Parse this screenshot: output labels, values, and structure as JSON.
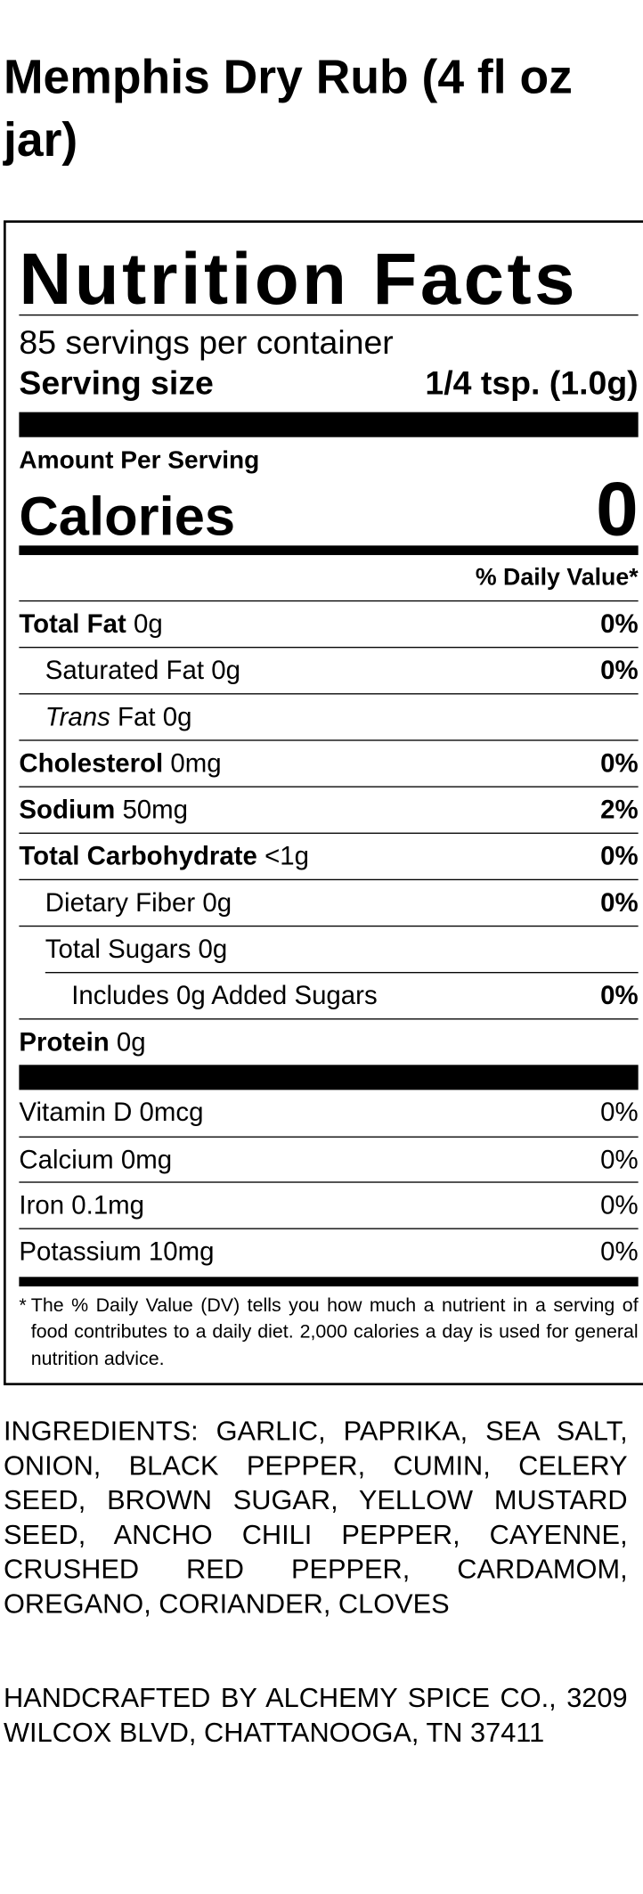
{
  "title": "Memphis Dry Rub (4 fl oz jar)",
  "label": {
    "heading": "Nutrition Facts",
    "servings": "85 servings per container",
    "serving_size_label": "Serving size",
    "serving_size": "1/4 tsp. (1.0g)",
    "amount_per_serving": "Amount Per Serving",
    "calories_label": "Calories",
    "calories": "0",
    "dv_header": "% Daily Value*",
    "rows": [
      {
        "name": "Total Fat",
        "amount": "0g",
        "dv": "0%"
      },
      {
        "name": "Saturated Fat",
        "amount": "0g",
        "dv": "0%"
      },
      {
        "name_italic": "Trans",
        "name": "Fat",
        "amount": "0g"
      },
      {
        "name": "Cholesterol",
        "amount": "0mg",
        "dv": "0%"
      },
      {
        "name": "Sodium",
        "amount": "50mg",
        "dv": "2%"
      },
      {
        "name": "Total Carbohydrate",
        "amount": "<1g",
        "dv": "0%"
      },
      {
        "name": "Dietary Fiber",
        "amount": "0g",
        "dv": "0%"
      },
      {
        "name": "Total Sugars",
        "amount": "0g"
      },
      {
        "name": "Includes 0g Added Sugars",
        "dv": "0%"
      },
      {
        "name": "Protein",
        "amount": "0g"
      }
    ],
    "vitamins": [
      {
        "name": "Vitamin D",
        "amount": "0mcg",
        "dv": "0%"
      },
      {
        "name": "Calcium",
        "amount": "0mg",
        "dv": "0%"
      },
      {
        "name": "Iron",
        "amount": "0.1mg",
        "dv": "0%"
      },
      {
        "name": "Potassium",
        "amount": "10mg",
        "dv": "0%"
      }
    ],
    "footnote_mark": "*",
    "footnote": "The % Daily Value (DV) tells you how much a nutrient in a serving of food contributes to a daily diet. 2,000 calories a day is used for general nutrition advice."
  },
  "ingredients": "INGREDIENTS: GARLIC, PAPRIKA, SEA SALT, ONION, BLACK PEPPER, CUMIN, CELERY SEED, BROWN SUGAR, YELLOW MUSTARD SEED, ANCHO CHILI PEPPER, CAYENNE, CRUSHED RED PEPPER, CARDAMOM, OREGANO, CORIANDER, CLOVES",
  "manufacturer": "HANDCRAFTED BY ALCHEMY SPICE CO., 3209 WILCOX BLVD, CHATTANOOGA, TN 37411"
}
